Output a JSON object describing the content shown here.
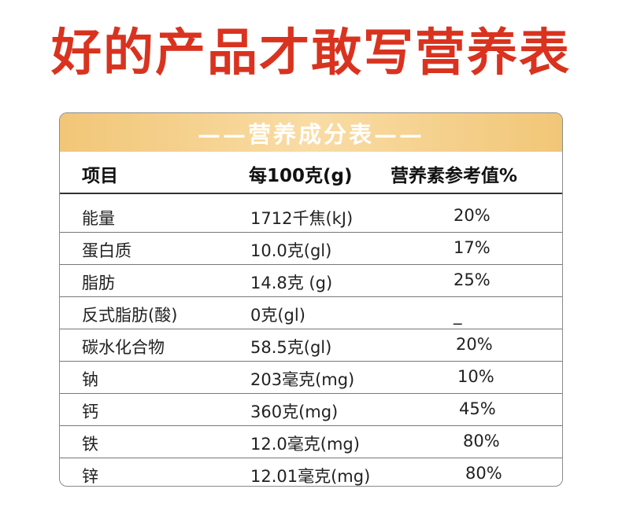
{
  "headline": "好的产品才敢写营养表",
  "table": {
    "title": "——营养成分表——",
    "columns": [
      "项目",
      "每100克(g)",
      "营养素参考值%"
    ],
    "rows": [
      [
        "能量",
        "1712千焦(kJ)",
        "20%"
      ],
      [
        "蛋白质",
        "10.0克(gl)",
        "17%"
      ],
      [
        "脂肪",
        "14.8克 (g)",
        "25%"
      ],
      [
        "反式脂肪(酸)",
        "0克(gl)",
        "_"
      ],
      [
        "碳水化合物",
        "58.5克(gl)",
        "20%"
      ],
      [
        "钠",
        "203毫克(mg)",
        "10%"
      ],
      [
        "钙",
        "360克(mg)",
        "45%"
      ],
      [
        "铁",
        "12.0毫克(mg)",
        "80%"
      ],
      [
        "锌",
        "12.01毫克(mg)",
        "80%"
      ]
    ]
  }
}
